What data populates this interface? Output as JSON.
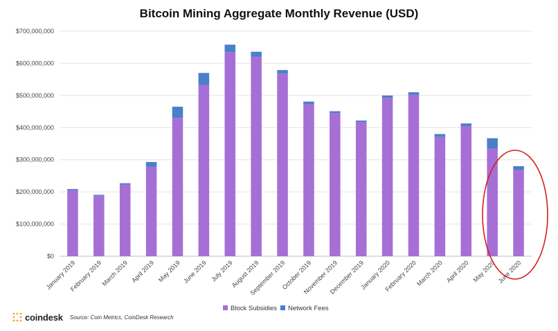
{
  "chart_data": {
    "type": "bar",
    "stacked": true,
    "title": "Bitcoin Mining Aggregate Monthly Revenue (USD)",
    "categories": [
      "January 2019",
      "February 2019",
      "March 2019",
      "April 2019",
      "May 2019",
      "June 2019",
      "July 2019",
      "August 2019",
      "September 2019",
      "October 2019",
      "November 2019",
      "December 2019",
      "January 2020",
      "February 2020",
      "March 2020",
      "April 2020",
      "May 2020",
      "June 2020"
    ],
    "series": [
      {
        "name": "Block Subsidies",
        "color": "#a66fd6",
        "values": [
          205000000,
          188000000,
          223000000,
          278000000,
          430000000,
          533000000,
          635000000,
          620000000,
          568000000,
          473000000,
          445000000,
          417000000,
          493000000,
          502000000,
          371000000,
          405000000,
          335000000,
          268000000
        ]
      },
      {
        "name": "Network Fees",
        "color": "#4a7fc9",
        "values": [
          4000000,
          3000000,
          4000000,
          15000000,
          35000000,
          37000000,
          23000000,
          16000000,
          11000000,
          8000000,
          6000000,
          5000000,
          7000000,
          8000000,
          9000000,
          8000000,
          32000000,
          12000000
        ]
      }
    ],
    "yticks": [
      "$0",
      "$100,000,000",
      "$200,000,000",
      "$300,000,000",
      "$400,000,000",
      "$500,000,000",
      "$600,000,000",
      "$700,000,000"
    ],
    "ylim": [
      0,
      700000000
    ],
    "legend_position": "bottom-center",
    "annotation": "red-ellipse-around-June-2020"
  },
  "footer": {
    "brand": "coindesk",
    "source": "Source: Coin Metrics, CoinDesk Research",
    "brand_color": "#f5a623"
  }
}
